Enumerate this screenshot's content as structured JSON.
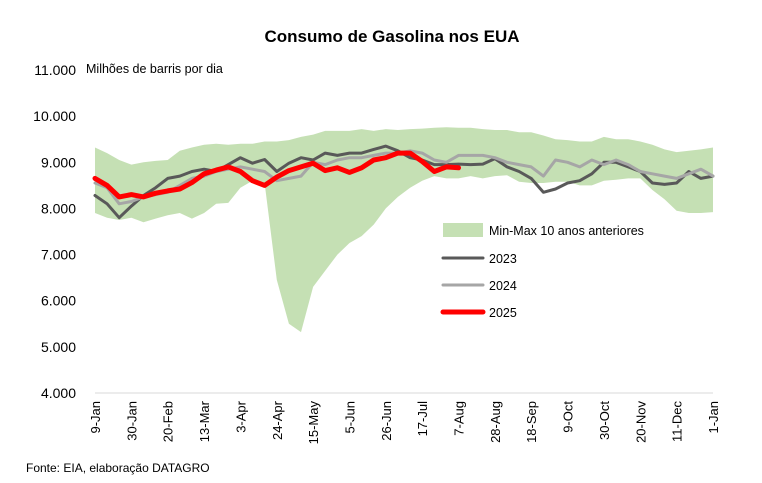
{
  "chart_data": {
    "type": "line",
    "title": "Consumo de Gasolina nos EUA",
    "ylabel": "Milhões de barris por dia",
    "source": "Fonte: EIA, elaboração DATAGRO",
    "ylim": [
      4000,
      11000
    ],
    "yticks": [
      "4.000",
      "5.000",
      "6.000",
      "7.000",
      "8.000",
      "9.000",
      "10.000",
      "11.000"
    ],
    "ytick_values": [
      4000,
      5000,
      6000,
      7000,
      8000,
      9000,
      10000,
      11000
    ],
    "x_labels": [
      "9-Jan",
      "30-Jan",
      "20-Feb",
      "13-Mar",
      "3-Apr",
      "24-Apr",
      "15-May",
      "5-Jun",
      "26-Jun",
      "17-Jul",
      "7-Aug",
      "28-Aug",
      "18-Sep",
      "9-Oct",
      "30-Oct",
      "20-Nov",
      "11-Dec",
      "1-Jan"
    ],
    "x_label_weeks": [
      1,
      4,
      7,
      10,
      13,
      16,
      19,
      22,
      25,
      28,
      31,
      34,
      37,
      40,
      43,
      46,
      49,
      52
    ],
    "x_weeks": [
      1,
      2,
      3,
      4,
      5,
      6,
      7,
      8,
      9,
      10,
      11,
      12,
      13,
      14,
      15,
      16,
      17,
      18,
      19,
      20,
      21,
      22,
      23,
      24,
      25,
      26,
      27,
      28,
      29,
      30,
      31,
      32,
      33,
      34,
      35,
      36,
      37,
      38,
      39,
      40,
      41,
      42,
      43,
      44,
      45,
      46,
      47,
      48,
      49,
      50,
      51,
      52
    ],
    "band": {
      "name": "Min-Max 10 anos anteriores",
      "color": "#c5e0b4",
      "max": [
        9320,
        9200,
        9050,
        8950,
        9000,
        9030,
        9050,
        9250,
        9320,
        9380,
        9400,
        9380,
        9400,
        9400,
        9450,
        9450,
        9480,
        9550,
        9600,
        9680,
        9680,
        9680,
        9720,
        9680,
        9720,
        9700,
        9720,
        9730,
        9750,
        9760,
        9750,
        9750,
        9720,
        9700,
        9700,
        9650,
        9650,
        9580,
        9500,
        9480,
        9450,
        9450,
        9550,
        9500,
        9500,
        9450,
        9380,
        9280,
        9220,
        9250,
        9280,
        9320
      ],
      "min": [
        7900,
        7800,
        7750,
        7800,
        7700,
        7780,
        7850,
        7900,
        7780,
        7900,
        8100,
        8120,
        8450,
        8600,
        8550,
        6450,
        5500,
        5320,
        6300,
        6650,
        7000,
        7250,
        7400,
        7650,
        8000,
        8250,
        8450,
        8600,
        8700,
        8650,
        8650,
        8700,
        8650,
        8700,
        8720,
        8580,
        8550,
        8550,
        8580,
        8580,
        8500,
        8500,
        8600,
        8620,
        8650,
        8650,
        8400,
        8200,
        7950,
        7900,
        7900,
        7920
      ]
    },
    "series": [
      {
        "name": "2023",
        "color": "#595959",
        "width": 3,
        "x": [
          1,
          2,
          3,
          4,
          5,
          6,
          7,
          8,
          9,
          10,
          11,
          12,
          13,
          14,
          15,
          16,
          17,
          18,
          19,
          20,
          21,
          22,
          23,
          24,
          25,
          26,
          27,
          28,
          29,
          30,
          31,
          32,
          33,
          34,
          35,
          36,
          37,
          38,
          39,
          40,
          41,
          42,
          43,
          44,
          45,
          46,
          47,
          48,
          49,
          50,
          51,
          52
        ],
        "values": [
          8280,
          8100,
          7800,
          8050,
          8280,
          8450,
          8650,
          8700,
          8800,
          8850,
          8800,
          8950,
          9100,
          8980,
          9060,
          8800,
          8980,
          9100,
          9050,
          9200,
          9150,
          9200,
          9200,
          9280,
          9350,
          9250,
          9100,
          9050,
          8950,
          8950,
          8960,
          8950,
          8960,
          9080,
          8900,
          8800,
          8650,
          8350,
          8420,
          8550,
          8600,
          8750,
          9000,
          9000,
          8900,
          8800,
          8550,
          8520,
          8550,
          8800,
          8650,
          8700
        ]
      },
      {
        "name": "2024",
        "color": "#a6a6a6",
        "width": 3,
        "x": [
          1,
          2,
          3,
          4,
          5,
          6,
          7,
          8,
          9,
          10,
          11,
          12,
          13,
          14,
          15,
          16,
          17,
          18,
          19,
          20,
          21,
          22,
          23,
          24,
          25,
          26,
          27,
          28,
          29,
          30,
          31,
          32,
          33,
          34,
          35,
          36,
          37,
          38,
          39,
          40,
          41,
          42,
          43,
          44,
          45,
          46,
          47,
          48,
          49,
          50,
          51,
          52
        ],
        "values": [
          8550,
          8450,
          8100,
          8150,
          8250,
          8300,
          8350,
          8500,
          8650,
          8700,
          8800,
          8850,
          8900,
          8850,
          8800,
          8600,
          8650,
          8700,
          9000,
          8950,
          9050,
          9100,
          9100,
          9150,
          9200,
          9200,
          9250,
          9200,
          9050,
          9000,
          9150,
          9150,
          9150,
          9100,
          9000,
          8950,
          8900,
          8700,
          9050,
          9000,
          8900,
          9050,
          8950,
          9050,
          8950,
          8800,
          8750,
          8700,
          8650,
          8750,
          8850,
          8700
        ]
      },
      {
        "name": "2025",
        "color": "#ff0000",
        "width": 5,
        "x": [
          1,
          2,
          3,
          4,
          5,
          6,
          7,
          8,
          9,
          10,
          11,
          12,
          13,
          14,
          15,
          16,
          17,
          18,
          19,
          20,
          21,
          22,
          23,
          24,
          25,
          26,
          27,
          28,
          29,
          30,
          31
        ],
        "values": [
          8650,
          8500,
          8250,
          8300,
          8250,
          8330,
          8380,
          8420,
          8560,
          8750,
          8830,
          8900,
          8800,
          8600,
          8500,
          8680,
          8820,
          8900,
          8980,
          8820,
          8880,
          8780,
          8880,
          9050,
          9100,
          9200,
          9200,
          9020,
          8800,
          8900,
          8880
        ]
      }
    ],
    "legend_position": "right-middle",
    "grid": false
  }
}
